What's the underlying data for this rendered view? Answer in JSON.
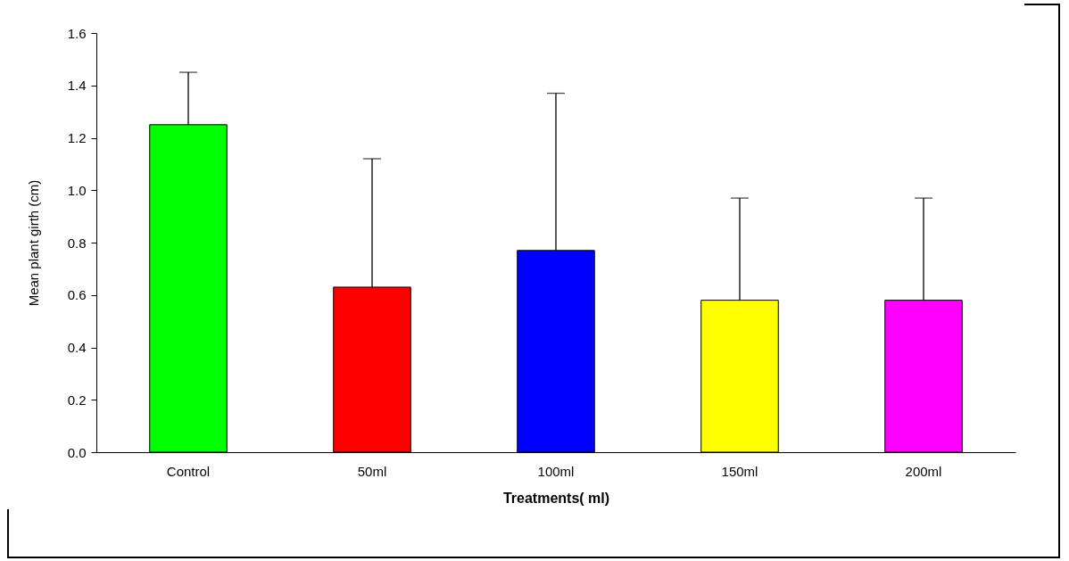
{
  "chart_data": {
    "type": "bar",
    "xlabel": "Treatments( ml)",
    "ylabel": "Mean plant girth (cm)",
    "categories": [
      "Control",
      "50ml",
      "100ml",
      "150ml",
      "200ml"
    ],
    "values": [
      1.25,
      0.63,
      0.77,
      0.58,
      0.58
    ],
    "colors": [
      "#00ff00",
      "#ff0000",
      "#0000ff",
      "#ffff00",
      "#ff00ff"
    ],
    "errors": [
      [
        1.25,
        1.45
      ],
      [
        0.63,
        1.12
      ],
      [
        0.77,
        1.37
      ],
      [
        0.58,
        0.97
      ],
      [
        0.58,
        0.97
      ]
    ],
    "ylim": [
      0,
      1.6
    ],
    "yticks": [
      {
        "value": 0,
        "label": "0.0"
      },
      {
        "value": 0.2,
        "label": "0.2"
      },
      {
        "value": 0.4,
        "label": "0.4"
      },
      {
        "value": 0.6,
        "label": "0.6"
      },
      {
        "value": 0.8,
        "label": "0.8"
      },
      {
        "value": 1,
        "label": "1.0"
      },
      {
        "value": 1.2,
        "label": "1.2"
      },
      {
        "value": 1.4,
        "label": "1.4"
      },
      {
        "value": 1.6,
        "label": "1.6"
      }
    ],
    "grid": false,
    "legend": false
  }
}
